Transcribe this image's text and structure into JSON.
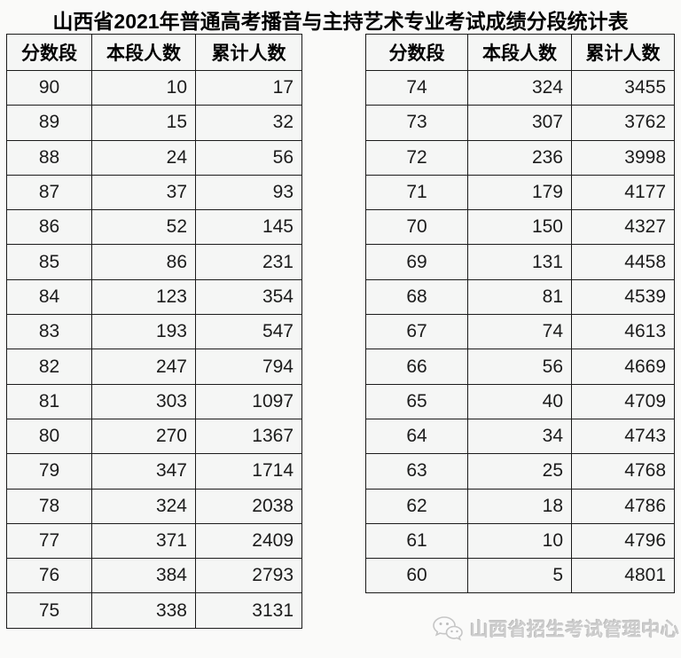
{
  "title": "山西省2021年普通高考播音与主持艺术专业考试成绩分段统计表",
  "columns": [
    "分数段",
    "本段人数",
    "累计人数"
  ],
  "tables": [
    {
      "name": "score-table-90-75",
      "rows": [
        [
          90,
          10,
          17
        ],
        [
          89,
          15,
          32
        ],
        [
          88,
          24,
          56
        ],
        [
          87,
          37,
          93
        ],
        [
          86,
          52,
          145
        ],
        [
          85,
          86,
          231
        ],
        [
          84,
          123,
          354
        ],
        [
          83,
          193,
          547
        ],
        [
          82,
          247,
          794
        ],
        [
          81,
          303,
          1097
        ],
        [
          80,
          270,
          1367
        ],
        [
          79,
          347,
          1714
        ],
        [
          78,
          324,
          2038
        ],
        [
          77,
          371,
          2409
        ],
        [
          76,
          384,
          2793
        ],
        [
          75,
          338,
          3131
        ]
      ]
    },
    {
      "name": "score-table-74-60",
      "rows": [
        [
          74,
          324,
          3455
        ],
        [
          73,
          307,
          3762
        ],
        [
          72,
          236,
          3998
        ],
        [
          71,
          179,
          4177
        ],
        [
          70,
          150,
          4327
        ],
        [
          69,
          131,
          4458
        ],
        [
          68,
          81,
          4539
        ],
        [
          67,
          74,
          4613
        ],
        [
          66,
          56,
          4669
        ],
        [
          65,
          40,
          4709
        ],
        [
          64,
          34,
          4743
        ],
        [
          63,
          25,
          4768
        ],
        [
          62,
          18,
          4786
        ],
        [
          61,
          10,
          4796
        ],
        [
          60,
          5,
          4801
        ]
      ]
    }
  ],
  "footer": {
    "publisher": "山西省招生考试管理中心",
    "icon": "wechat-logo-icon"
  },
  "colors": {
    "page_background": "#fafaf9",
    "cell_background": "#f5f6f5",
    "table_border": "#1b1b1b",
    "title_text": "#000000",
    "data_text": "#1c1c1c",
    "watermark_text": "#cdcdcd"
  }
}
